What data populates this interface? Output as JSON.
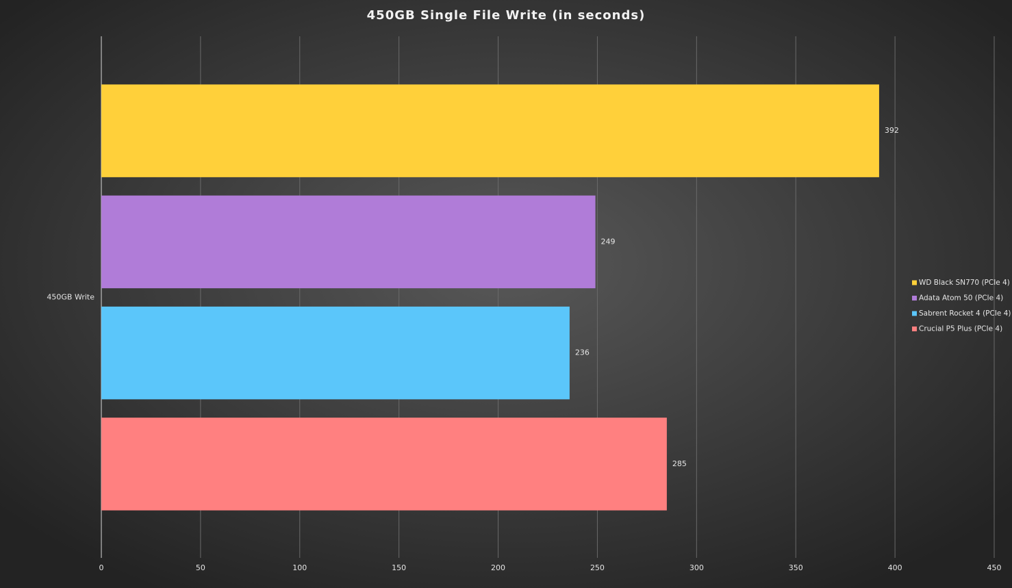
{
  "chart_data": {
    "type": "bar",
    "orientation": "horizontal",
    "title": "450GB Single File Write  (in seconds)",
    "categories": [
      "450GB Write"
    ],
    "series": [
      {
        "name": "WD Black SN770 (PCIe 4)",
        "color": "#ffd03a",
        "values": [
          392
        ]
      },
      {
        "name": "Adata Atom 50 (PCIe 4)",
        "color": "#b07cd8",
        "values": [
          249
        ]
      },
      {
        "name": "Sabrent Rocket 4 (PCIe 4)",
        "color": "#5bc6fa",
        "values": [
          236
        ]
      },
      {
        "name": "Crucial P5 Plus (PCIe 4)",
        "color": "#ff8080",
        "values": [
          285
        ]
      }
    ],
    "xlim": [
      0,
      450
    ],
    "xticks": [
      0,
      50,
      100,
      150,
      200,
      250,
      300,
      350,
      400,
      450
    ],
    "grid": true,
    "legend": "right"
  }
}
